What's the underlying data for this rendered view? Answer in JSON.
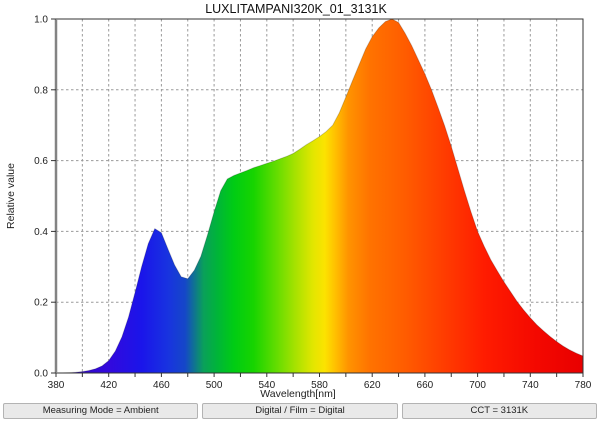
{
  "chart_data": {
    "type": "area",
    "title": "LUXLITAMPANI320K_01_3131K",
    "xlabel": "Wavelength[nm]",
    "ylabel": "Relative value",
    "xlim": [
      380,
      780
    ],
    "ylim": [
      0,
      1.0
    ],
    "grid": "dashed",
    "legend": "none",
    "x_tick_step_labeled": 40,
    "x_grid_step": 20,
    "x_tick_labels": [
      "380",
      "420",
      "460",
      "500",
      "540",
      "580",
      "620",
      "660",
      "700",
      "740",
      "780"
    ],
    "y_tick_labels": [
      "0.0",
      "0.2",
      "0.4",
      "0.6",
      "0.8",
      "1.0"
    ],
    "blue_peak": {
      "wavelength_nm": 454,
      "value": 0.41
    },
    "dip": {
      "wavelength_nm": 477,
      "value": 0.27
    },
    "main_peak": {
      "wavelength_nm": 634,
      "value": 1.0
    },
    "x": [
      380,
      385,
      390,
      395,
      400,
      405,
      410,
      415,
      420,
      425,
      430,
      435,
      440,
      445,
      450,
      455,
      460,
      465,
      470,
      475,
      480,
      485,
      490,
      495,
      500,
      505,
      510,
      515,
      520,
      525,
      530,
      535,
      540,
      545,
      550,
      555,
      560,
      565,
      570,
      575,
      580,
      585,
      590,
      595,
      600,
      605,
      610,
      615,
      620,
      625,
      630,
      635,
      640,
      645,
      650,
      655,
      660,
      665,
      670,
      675,
      680,
      685,
      690,
      695,
      700,
      705,
      710,
      715,
      720,
      725,
      730,
      735,
      740,
      745,
      750,
      755,
      760,
      765,
      770,
      775,
      780
    ],
    "y": [
      0,
      0,
      0.001,
      0.002,
      0.004,
      0.007,
      0.012,
      0.02,
      0.035,
      0.062,
      0.102,
      0.158,
      0.228,
      0.3,
      0.365,
      0.408,
      0.396,
      0.35,
      0.305,
      0.272,
      0.266,
      0.29,
      0.33,
      0.39,
      0.455,
      0.515,
      0.548,
      0.558,
      0.565,
      0.572,
      0.58,
      0.586,
      0.592,
      0.598,
      0.605,
      0.612,
      0.62,
      0.632,
      0.645,
      0.656,
      0.668,
      0.682,
      0.7,
      0.735,
      0.78,
      0.825,
      0.87,
      0.915,
      0.95,
      0.975,
      0.993,
      1.0,
      0.99,
      0.96,
      0.925,
      0.885,
      0.845,
      0.8,
      0.75,
      0.698,
      0.64,
      0.578,
      0.515,
      0.455,
      0.4,
      0.358,
      0.32,
      0.288,
      0.258,
      0.23,
      0.202,
      0.178,
      0.156,
      0.136,
      0.119,
      0.103,
      0.089,
      0.076,
      0.065,
      0.056,
      0.048
    ],
    "spectrum_gradient": [
      {
        "wl": 380,
        "color": "#2f07b5"
      },
      {
        "wl": 420,
        "color": "#3309dd"
      },
      {
        "wl": 445,
        "color": "#1a15ea"
      },
      {
        "wl": 465,
        "color": "#1833e0"
      },
      {
        "wl": 478,
        "color": "#1547c8"
      },
      {
        "wl": 492,
        "color": "#0aa05a"
      },
      {
        "wl": 502,
        "color": "#00b43a"
      },
      {
        "wl": 515,
        "color": "#00cc14"
      },
      {
        "wl": 530,
        "color": "#17d400"
      },
      {
        "wl": 548,
        "color": "#66dd00"
      },
      {
        "wl": 562,
        "color": "#a8e200"
      },
      {
        "wl": 575,
        "color": "#e2e600"
      },
      {
        "wl": 584,
        "color": "#fce300"
      },
      {
        "wl": 592,
        "color": "#ffc000"
      },
      {
        "wl": 602,
        "color": "#ff9300"
      },
      {
        "wl": 618,
        "color": "#ff7300"
      },
      {
        "wl": 645,
        "color": "#ff5c00"
      },
      {
        "wl": 675,
        "color": "#ff3c00"
      },
      {
        "wl": 705,
        "color": "#ff1c00"
      },
      {
        "wl": 745,
        "color": "#f40800"
      },
      {
        "wl": 780,
        "color": "#e80000"
      }
    ],
    "colors": {
      "grid": "#9a9a9a",
      "frame": "#333333",
      "left_axis": "#838383",
      "tick_text": "#222222",
      "title_text": "#111111"
    }
  },
  "status_bar": {
    "cells": [
      {
        "label": "Measuring Mode = Ambient"
      },
      {
        "label": "Digital / Film = Digital"
      },
      {
        "label": "CCT = 3131K"
      }
    ]
  }
}
